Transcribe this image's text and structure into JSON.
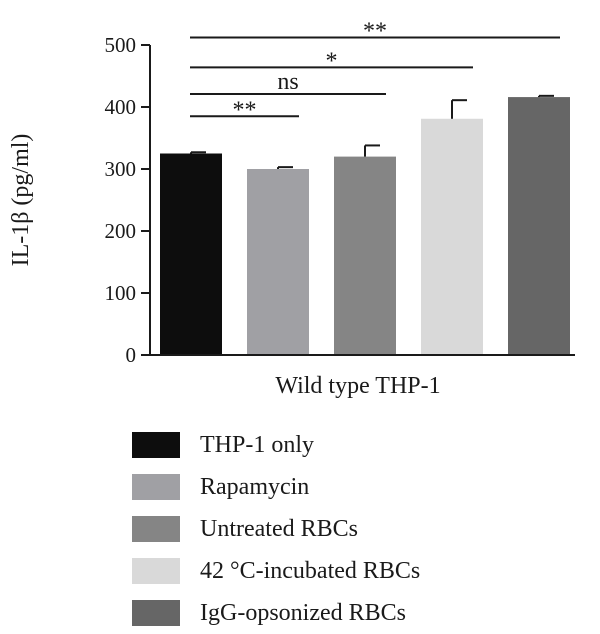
{
  "chart_data": {
    "type": "bar",
    "ylabel": "IL-1β (pg/ml)",
    "xlabel": "Wild type THP-1",
    "ylim": [
      0,
      500
    ],
    "yticks": [
      0,
      100,
      200,
      300,
      400,
      500
    ],
    "series": [
      {
        "name": "THP-1 only",
        "value": 325,
        "error": 2,
        "color": "#0d0d0d"
      },
      {
        "name": "Rapamycin",
        "value": 300,
        "error": 3,
        "color": "#a0a0a4"
      },
      {
        "name": "Untreated RBCs",
        "value": 320,
        "error": 18,
        "color": "#858585"
      },
      {
        "name": "42 °C-incubated RBCs",
        "value": 381,
        "error": 30,
        "color": "#d9d9d9"
      },
      {
        "name": "IgG-opsonized RBCs",
        "value": 416,
        "error": 2,
        "color": "#666666"
      }
    ],
    "significance": [
      {
        "from": 0,
        "to": 1,
        "label": "**",
        "y": 385
      },
      {
        "from": 0,
        "to": 2,
        "label": "ns",
        "y": 421
      },
      {
        "from": 0,
        "to": 3,
        "label": "*",
        "y": 464
      },
      {
        "from": 0,
        "to": 4,
        "label": "**",
        "y": 512
      }
    ],
    "grid": false,
    "legend_position": "bottom"
  }
}
